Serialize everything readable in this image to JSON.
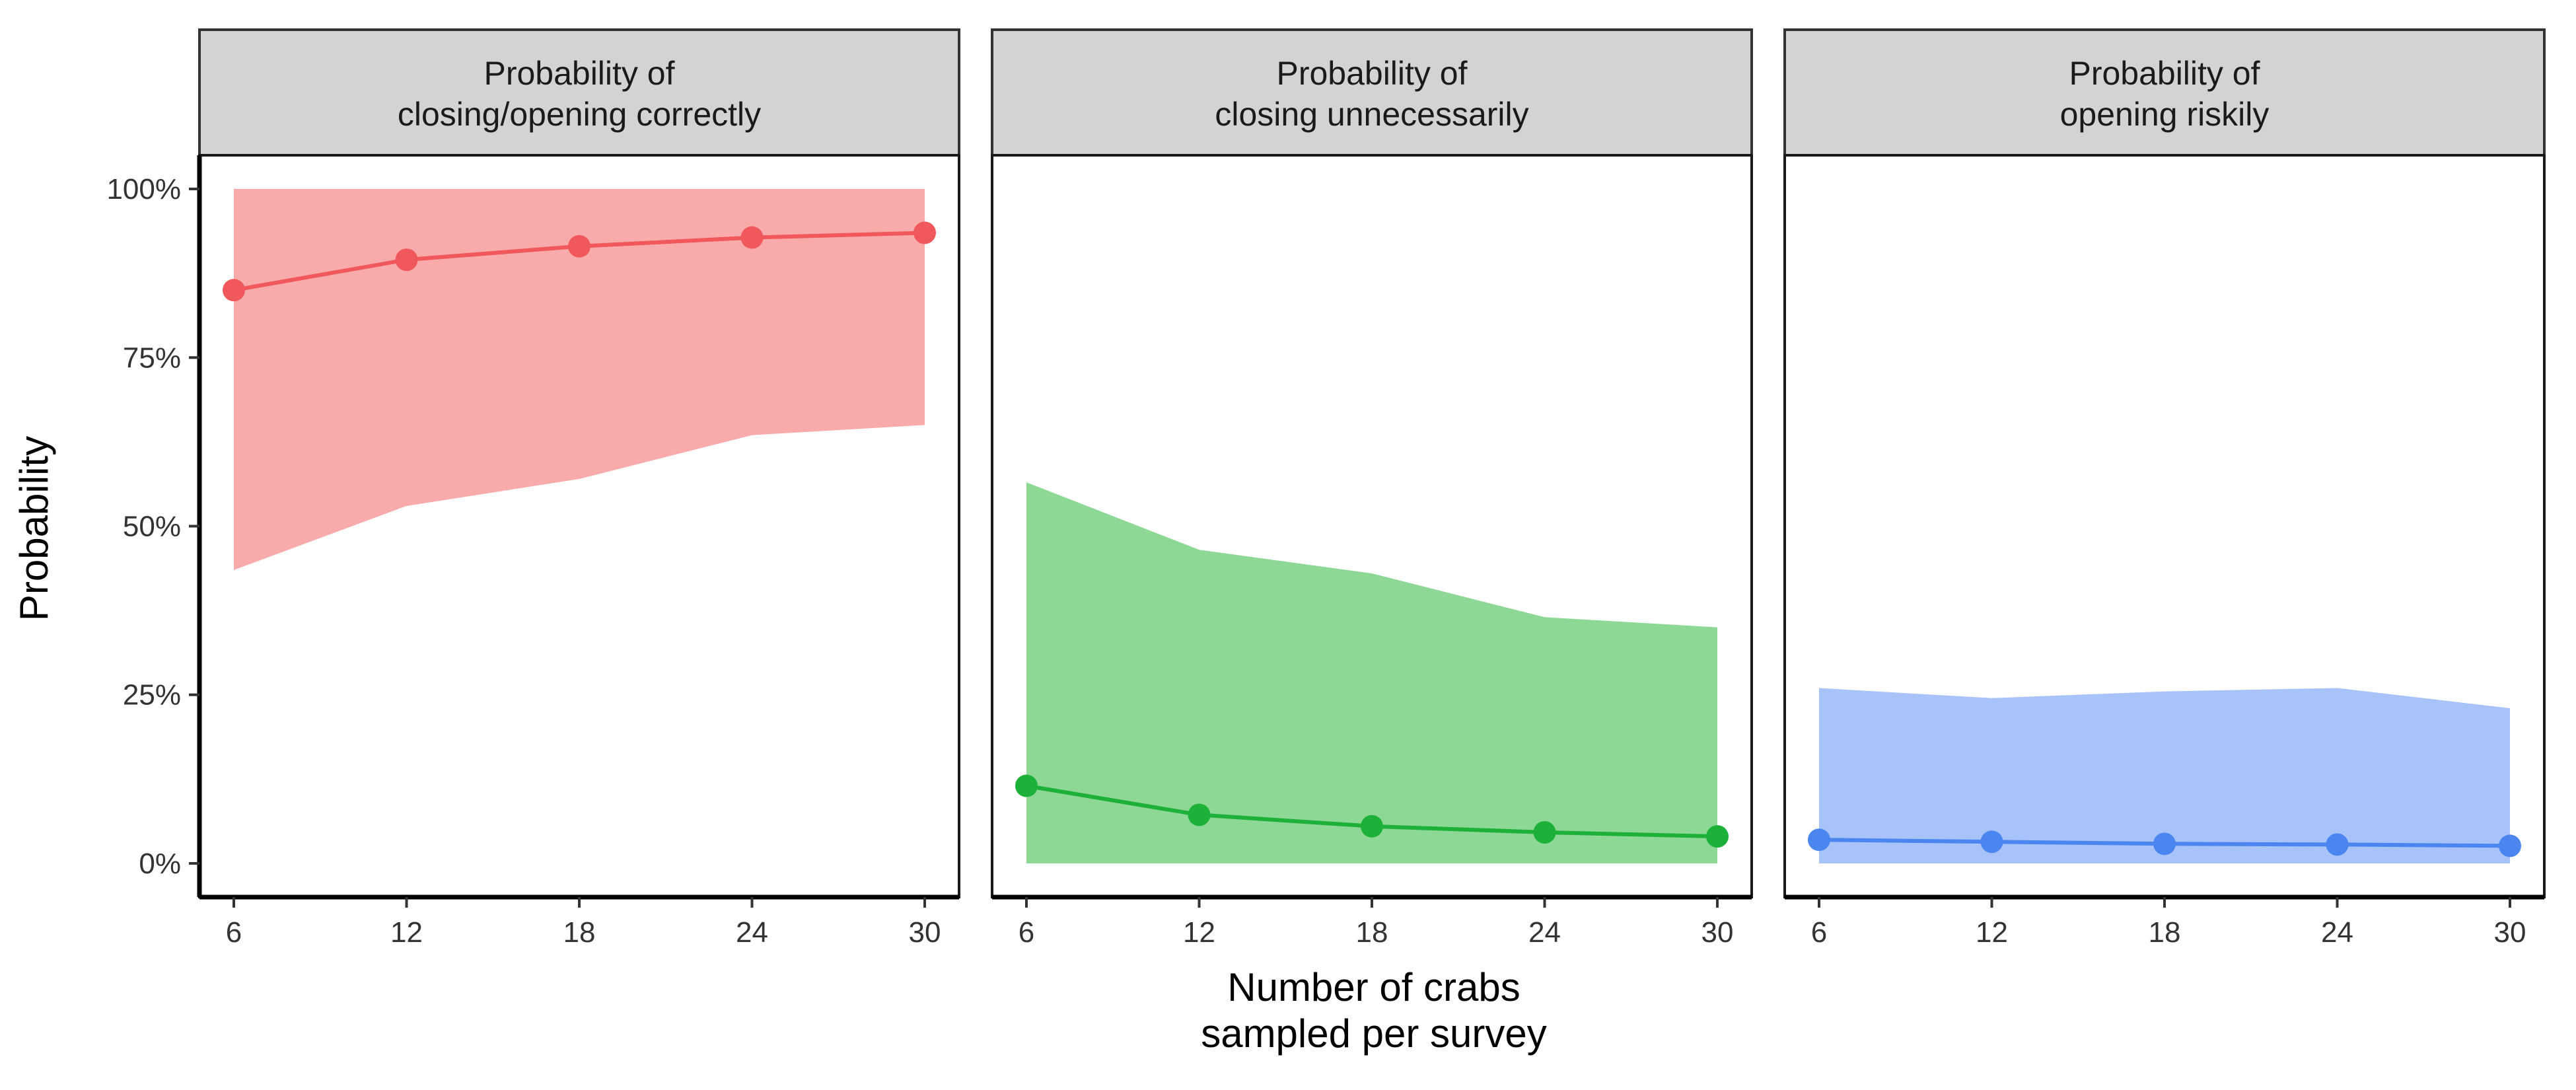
{
  "chart_data": {
    "type": "line",
    "xlabel": [
      "Number of crabs",
      "sampled per survey"
    ],
    "ylabel": "Probability",
    "x": [
      6,
      12,
      18,
      24,
      30
    ],
    "x_ticks": [
      "6",
      "12",
      "18",
      "24",
      "30"
    ],
    "y_ticks": [
      0,
      25,
      50,
      75,
      100
    ],
    "y_tick_labels": [
      "0%",
      "25%",
      "50%",
      "75%",
      "100%"
    ],
    "ylim": [
      -5,
      105
    ],
    "grid": false,
    "legend": "none",
    "panels": [
      {
        "title": [
          "Probability of",
          "closing/opening correctly"
        ],
        "line_color": "#F0585C",
        "band_color": "#F9ABAB",
        "values": [
          85,
          89.5,
          91.5,
          92.8,
          93.5
        ],
        "lower": [
          43.5,
          53,
          57,
          63.5,
          65
        ],
        "upper": [
          100,
          100,
          100,
          100,
          100
        ]
      },
      {
        "title": [
          "Probability of",
          "closing unnecessarily"
        ],
        "line_color": "#1DB13A",
        "band_color": "#8CD894",
        "values": [
          11.5,
          7.2,
          5.5,
          4.6,
          4.0
        ],
        "lower": [
          0,
          0,
          0,
          0,
          0
        ],
        "upper": [
          56.5,
          46.5,
          43,
          36.5,
          35
        ]
      },
      {
        "title": [
          "Probability of",
          "opening riskily"
        ],
        "line_color": "#4B86F0",
        "band_color": "#A8C2FA",
        "values": [
          3.5,
          3.2,
          2.9,
          2.8,
          2.6
        ],
        "lower": [
          0,
          0,
          0,
          0,
          0
        ],
        "upper": [
          26,
          24.5,
          25.5,
          26,
          23
        ]
      }
    ]
  }
}
